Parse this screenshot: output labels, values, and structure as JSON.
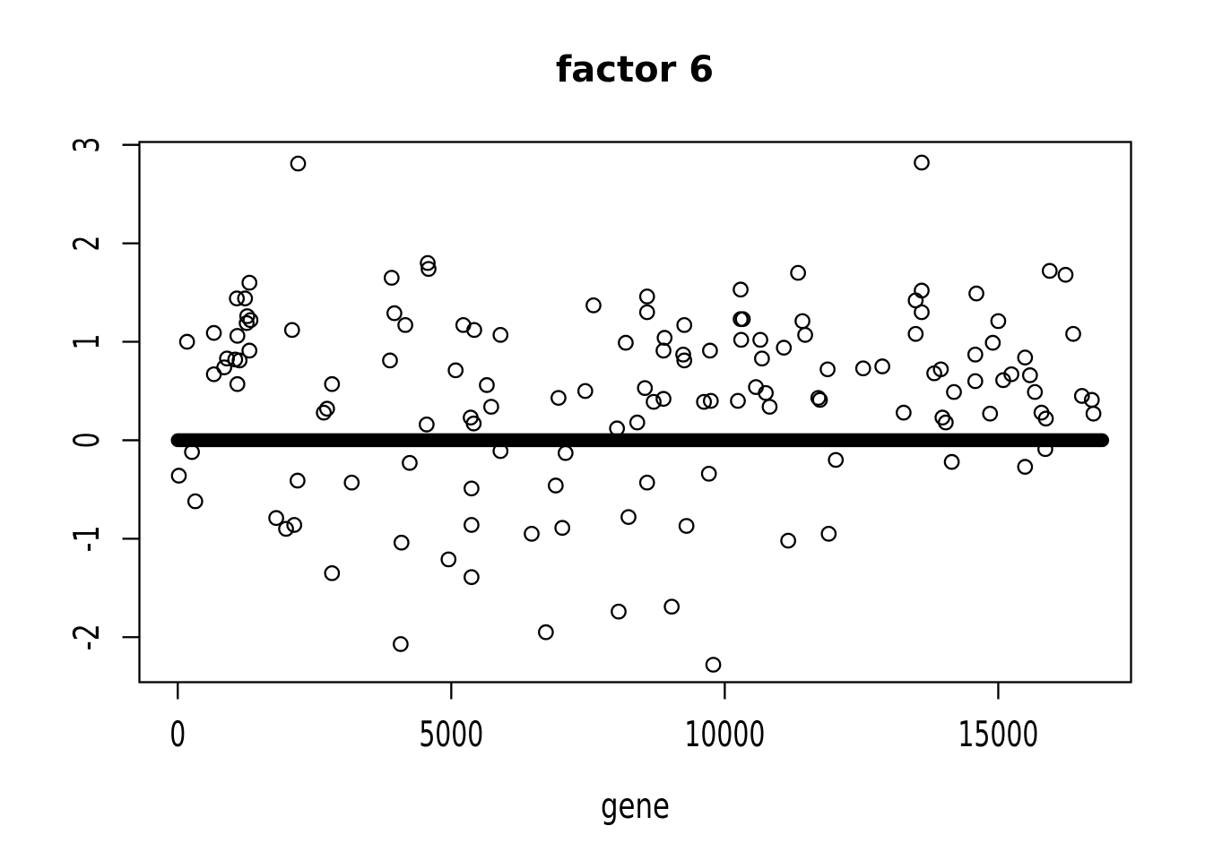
{
  "figure": {
    "background_color": "#ffffff",
    "foreground_color": "#000000"
  },
  "chart_data": {
    "type": "scatter",
    "title": "factor 6",
    "xlabel": "gene",
    "ylabel": "",
    "marker": "open-circle",
    "grid": false,
    "legend": "none",
    "xlim": [
      -701,
      17427
    ],
    "ylim": [
      -2.457,
      3.029
    ],
    "x_ticks": [
      0,
      5000,
      10000,
      15000
    ],
    "y_ticks": [
      3,
      2,
      1,
      0,
      -1,
      -2
    ],
    "zero_band": {
      "description": "dense run of points plotted at y=0 forming a thick solid horizontal band",
      "y": 0,
      "gene_start": 0,
      "gene_end": 16900
    },
    "points": [
      [
        20,
        -0.36
      ],
      [
        170,
        1.0
      ],
      [
        260,
        -0.12
      ],
      [
        320,
        -0.62
      ],
      [
        660,
        1.09
      ],
      [
        660,
        0.67
      ],
      [
        850,
        0.74
      ],
      [
        900,
        0.83
      ],
      [
        1050,
        0.82
      ],
      [
        1080,
        1.44
      ],
      [
        1090,
        1.06
      ],
      [
        1090,
        0.57
      ],
      [
        1130,
        0.81
      ],
      [
        1230,
        1.44
      ],
      [
        1260,
        1.19
      ],
      [
        1270,
        1.26
      ],
      [
        1310,
        1.6
      ],
      [
        1310,
        0.91
      ],
      [
        1330,
        1.22
      ],
      [
        1800,
        -0.79
      ],
      [
        1980,
        -0.9
      ],
      [
        2090,
        1.12
      ],
      [
        2130,
        -0.86
      ],
      [
        2190,
        -0.41
      ],
      [
        2200,
        2.81
      ],
      [
        2670,
        0.28
      ],
      [
        2730,
        0.32
      ],
      [
        2820,
        0.57
      ],
      [
        2820,
        -1.35
      ],
      [
        3180,
        -0.43
      ],
      [
        3880,
        0.81
      ],
      [
        3910,
        1.65
      ],
      [
        3960,
        1.29
      ],
      [
        4075,
        -2.07
      ],
      [
        4090,
        -1.04
      ],
      [
        4160,
        1.17
      ],
      [
        4240,
        -0.23
      ],
      [
        4550,
        0.16
      ],
      [
        4570,
        1.8
      ],
      [
        4585,
        1.74
      ],
      [
        4950,
        -1.21
      ],
      [
        5080,
        0.71
      ],
      [
        5220,
        1.17
      ],
      [
        5355,
        0.23
      ],
      [
        5370,
        -0.49
      ],
      [
        5370,
        -0.86
      ],
      [
        5370,
        -1.39
      ],
      [
        5410,
        0.17
      ],
      [
        5420,
        1.12
      ],
      [
        5650,
        0.56
      ],
      [
        5730,
        0.34
      ],
      [
        5900,
        1.07
      ],
      [
        5900,
        -0.11
      ],
      [
        6470,
        -0.95
      ],
      [
        6730,
        -1.95
      ],
      [
        6910,
        -0.46
      ],
      [
        6960,
        0.43
      ],
      [
        7030,
        -0.89
      ],
      [
        7090,
        -0.13
      ],
      [
        7450,
        0.5
      ],
      [
        7600,
        1.37
      ],
      [
        8030,
        0.12
      ],
      [
        8060,
        -1.74
      ],
      [
        8190,
        0.99
      ],
      [
        8240,
        -0.78
      ],
      [
        8400,
        0.18
      ],
      [
        8540,
        0.53
      ],
      [
        8580,
        1.46
      ],
      [
        8580,
        1.3
      ],
      [
        8580,
        -0.43
      ],
      [
        8700,
        0.39
      ],
      [
        8880,
        0.91
      ],
      [
        8880,
        0.42
      ],
      [
        8900,
        1.04
      ],
      [
        9030,
        -1.69
      ],
      [
        9240,
        0.87
      ],
      [
        9260,
        1.17
      ],
      [
        9260,
        0.81
      ],
      [
        9300,
        -0.87
      ],
      [
        9620,
        0.39
      ],
      [
        9710,
        -0.34
      ],
      [
        9730,
        0.91
      ],
      [
        9745,
        0.4
      ],
      [
        9790,
        -2.28
      ],
      [
        10240,
        0.4
      ],
      [
        10290,
        1.53
      ],
      [
        10290,
        1.23
      ],
      [
        10330,
        1.23
      ],
      [
        10300,
        1.02
      ],
      [
        10570,
        0.54
      ],
      [
        10650,
        1.02
      ],
      [
        10680,
        0.83
      ],
      [
        10750,
        0.48
      ],
      [
        10820,
        0.34
      ],
      [
        11080,
        0.94
      ],
      [
        11160,
        -1.02
      ],
      [
        11340,
        1.7
      ],
      [
        11420,
        1.21
      ],
      [
        11470,
        1.07
      ],
      [
        11710,
        0.43
      ],
      [
        11740,
        0.41
      ],
      [
        11880,
        0.72
      ],
      [
        11900,
        -0.95
      ],
      [
        12030,
        -0.2
      ],
      [
        12530,
        0.73
      ],
      [
        12880,
        0.75
      ],
      [
        13270,
        0.28
      ],
      [
        13490,
        1.42
      ],
      [
        13490,
        1.08
      ],
      [
        13600,
        2.82
      ],
      [
        13600,
        1.52
      ],
      [
        13600,
        1.3
      ],
      [
        13830,
        0.68
      ],
      [
        13950,
        0.72
      ],
      [
        13980,
        0.23
      ],
      [
        14040,
        0.18
      ],
      [
        14150,
        -0.22
      ],
      [
        14190,
        0.49
      ],
      [
        14580,
        0.87
      ],
      [
        14580,
        0.6
      ],
      [
        14600,
        1.49
      ],
      [
        14850,
        0.27
      ],
      [
        14900,
        0.99
      ],
      [
        15000,
        1.21
      ],
      [
        15090,
        0.61
      ],
      [
        15240,
        0.67
      ],
      [
        15490,
        0.84
      ],
      [
        15490,
        -0.27
      ],
      [
        15580,
        0.66
      ],
      [
        15670,
        0.49
      ],
      [
        15790,
        0.28
      ],
      [
        15860,
        -0.09
      ],
      [
        15870,
        0.22
      ],
      [
        15940,
        1.72
      ],
      [
        16230,
        1.68
      ],
      [
        16370,
        1.08
      ],
      [
        16530,
        0.45
      ],
      [
        16710,
        0.41
      ],
      [
        16740,
        0.27
      ]
    ]
  }
}
